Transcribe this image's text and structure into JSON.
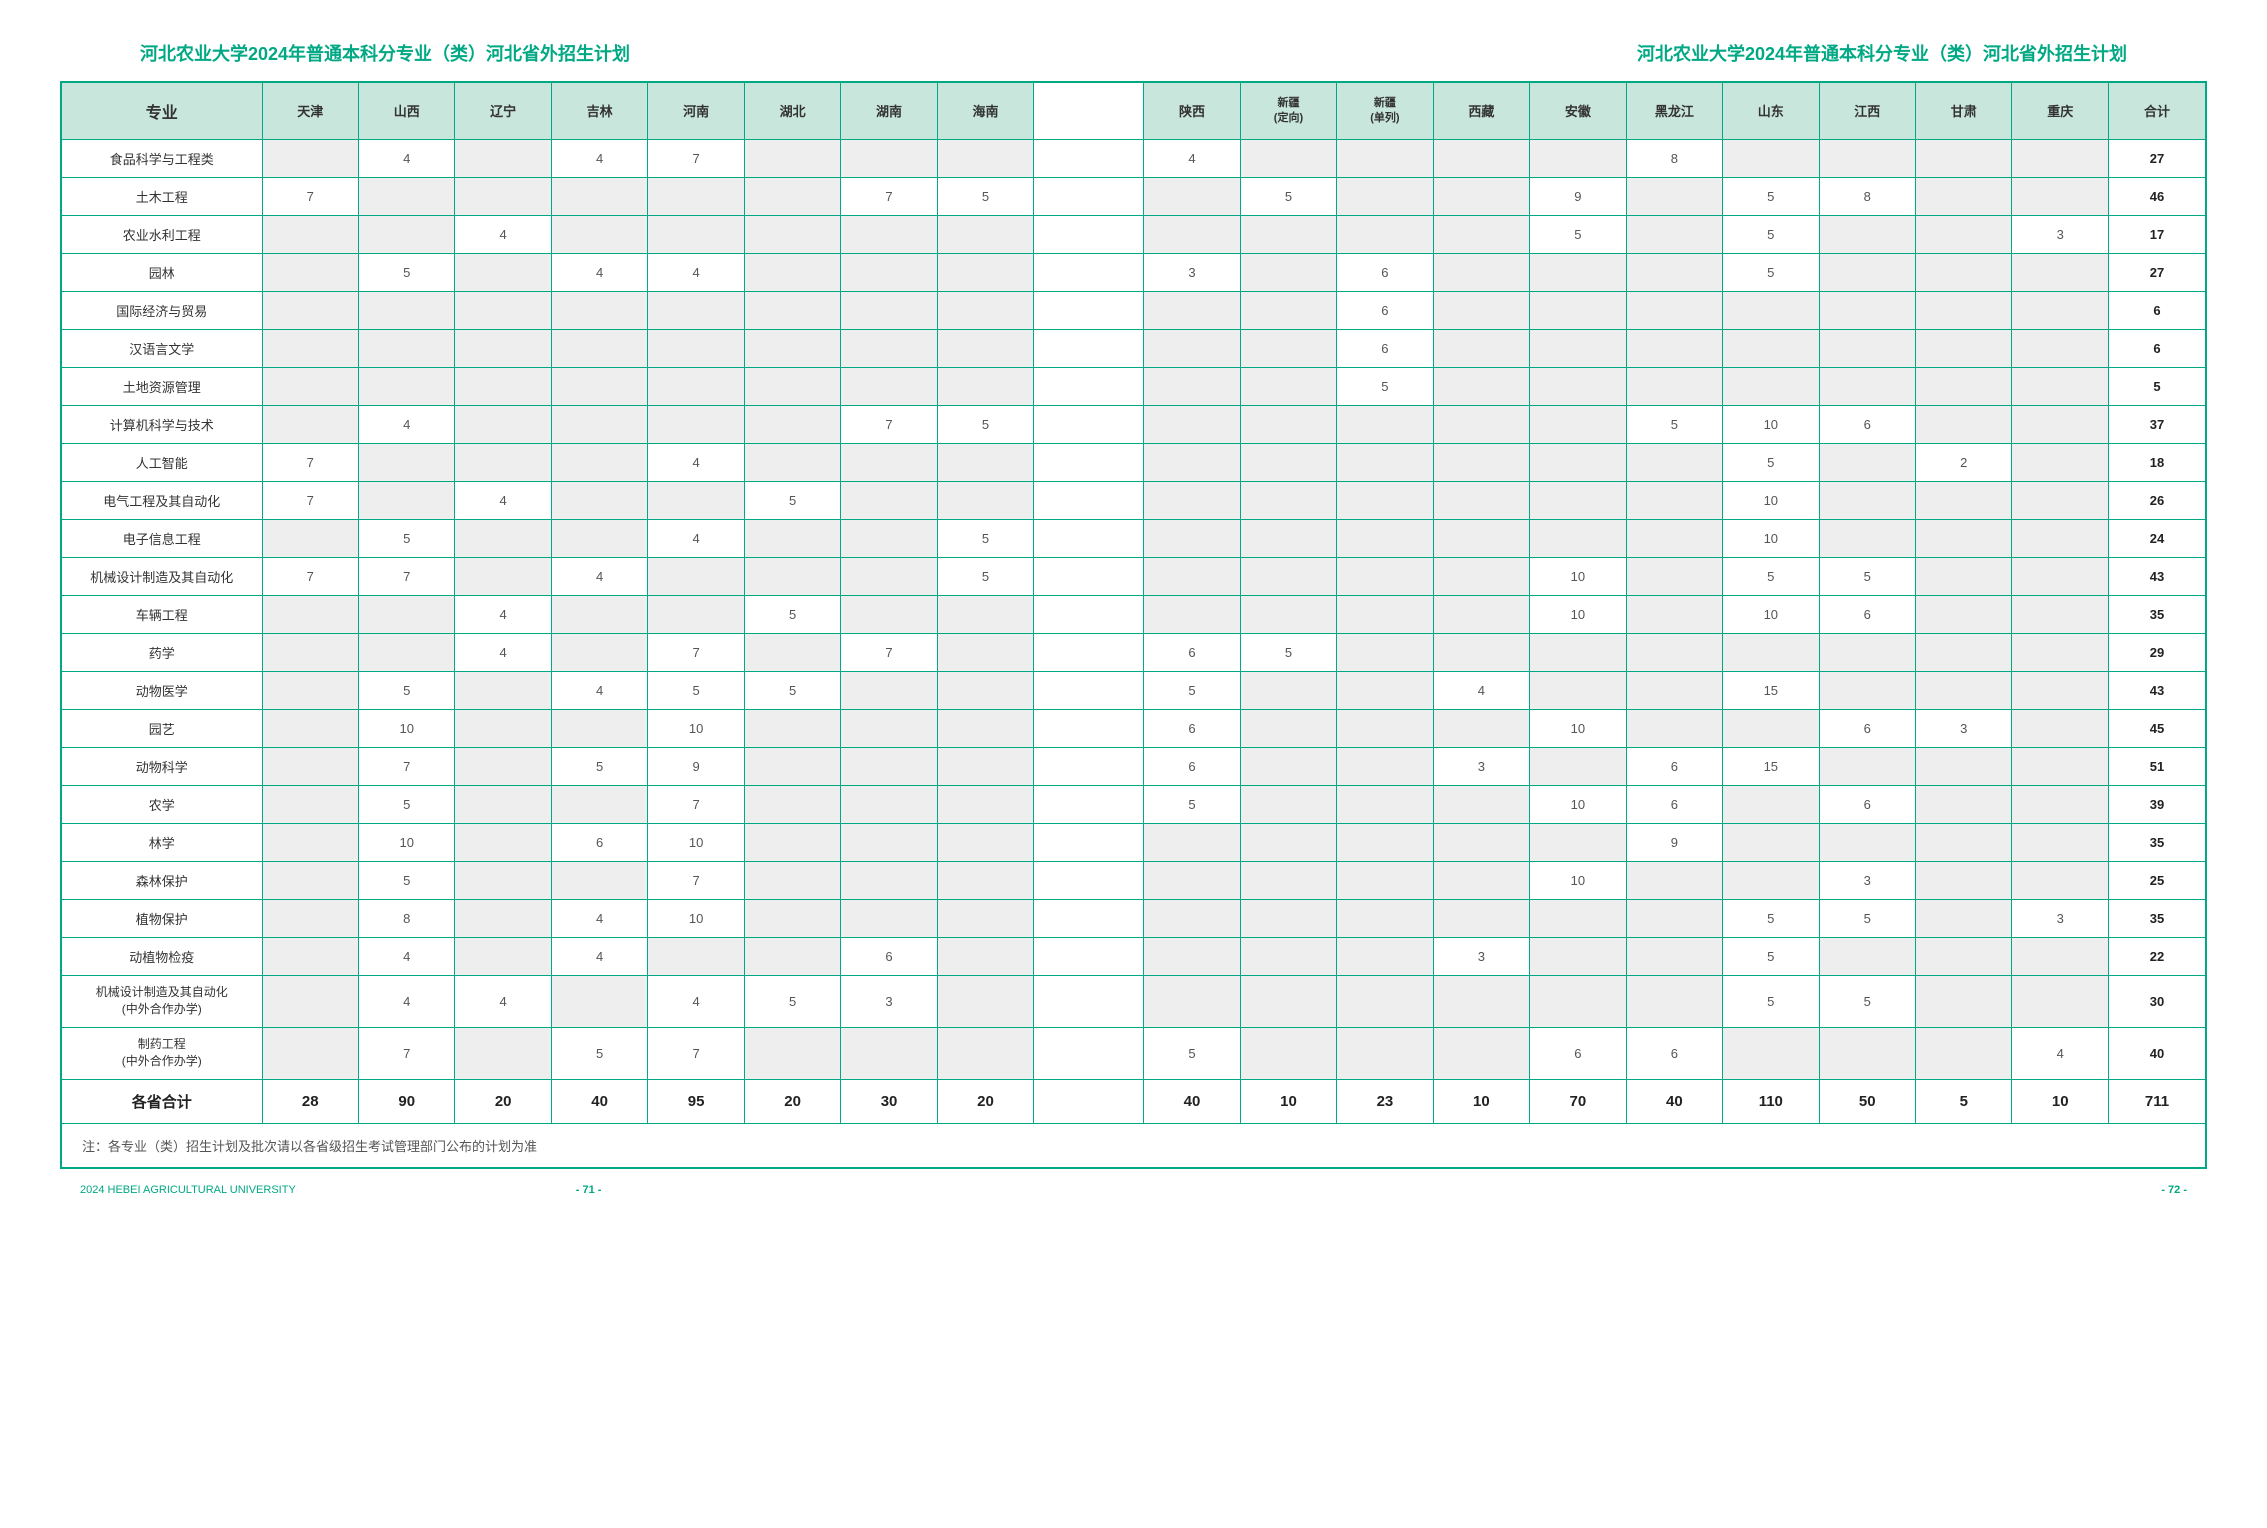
{
  "title_left": "河北农业大学2024年普通本科分专业（类）河北省外招生计划",
  "title_right": "河北农业大学2024年普通本科分专业（类）河北省外招生计划",
  "columns": [
    "专业",
    "天津",
    "山西",
    "辽宁",
    "吉林",
    "河南",
    "湖北",
    "湖南",
    "海南",
    "",
    "陕西",
    "新疆(定向)",
    "新疆(单列)",
    "西藏",
    "安徽",
    "黑龙江",
    "山东",
    "江西",
    "甘肃",
    "重庆",
    "合计"
  ],
  "rows": [
    {
      "major": "食品科学与工程类",
      "v": [
        "",
        "4",
        "",
        "4",
        "7",
        "",
        "",
        "",
        "",
        "4",
        "",
        "",
        "",
        "",
        "8",
        "",
        "",
        "",
        "",
        "27"
      ]
    },
    {
      "major": "土木工程",
      "v": [
        "7",
        "",
        "",
        "",
        "",
        "",
        "7",
        "5",
        "",
        "",
        "5",
        "",
        "",
        "9",
        "",
        "5",
        "8",
        "",
        "",
        "46"
      ]
    },
    {
      "major": "农业水利工程",
      "v": [
        "",
        "",
        "4",
        "",
        "",
        "",
        "",
        "",
        "",
        "",
        "",
        "",
        "",
        "5",
        "",
        "5",
        "",
        "",
        "3",
        "17"
      ]
    },
    {
      "major": "园林",
      "v": [
        "",
        "5",
        "",
        "4",
        "4",
        "",
        "",
        "",
        "",
        "3",
        "",
        "6",
        "",
        "",
        "",
        "5",
        "",
        "",
        "",
        "27"
      ]
    },
    {
      "major": "国际经济与贸易",
      "v": [
        "",
        "",
        "",
        "",
        "",
        "",
        "",
        "",
        "",
        "",
        "",
        "6",
        "",
        "",
        "",
        "",
        "",
        "",
        "",
        "6"
      ]
    },
    {
      "major": "汉语言文学",
      "v": [
        "",
        "",
        "",
        "",
        "",
        "",
        "",
        "",
        "",
        "",
        "",
        "6",
        "",
        "",
        "",
        "",
        "",
        "",
        "",
        "6"
      ]
    },
    {
      "major": "土地资源管理",
      "v": [
        "",
        "",
        "",
        "",
        "",
        "",
        "",
        "",
        "",
        "",
        "",
        "5",
        "",
        "",
        "",
        "",
        "",
        "",
        "",
        "5"
      ]
    },
    {
      "major": "计算机科学与技术",
      "v": [
        "",
        "4",
        "",
        "",
        "",
        "",
        "7",
        "5",
        "",
        "",
        "",
        "",
        "",
        "",
        "5",
        "10",
        "6",
        "",
        "",
        "37"
      ]
    },
    {
      "major": "人工智能",
      "v": [
        "7",
        "",
        "",
        "",
        "4",
        "",
        "",
        "",
        "",
        "",
        "",
        "",
        "",
        "",
        "",
        "5",
        "",
        "2",
        "",
        "18"
      ]
    },
    {
      "major": "电气工程及其自动化",
      "v": [
        "7",
        "",
        "4",
        "",
        "",
        "5",
        "",
        "",
        "",
        "",
        "",
        "",
        "",
        "",
        "",
        "10",
        "",
        "",
        "",
        "26"
      ]
    },
    {
      "major": "电子信息工程",
      "v": [
        "",
        "5",
        "",
        "",
        "4",
        "",
        "",
        "5",
        "",
        "",
        "",
        "",
        "",
        "",
        "",
        "10",
        "",
        "",
        "",
        "24"
      ]
    },
    {
      "major": "机械设计制造及其自动化",
      "v": [
        "7",
        "7",
        "",
        "4",
        "",
        "",
        "",
        "5",
        "",
        "",
        "",
        "",
        "",
        "10",
        "",
        "5",
        "5",
        "",
        "",
        "43"
      ]
    },
    {
      "major": "车辆工程",
      "v": [
        "",
        "",
        "4",
        "",
        "",
        "5",
        "",
        "",
        "",
        "",
        "",
        "",
        "",
        "10",
        "",
        "10",
        "6",
        "",
        "",
        "35"
      ]
    },
    {
      "major": "药学",
      "v": [
        "",
        "",
        "4",
        "",
        "7",
        "",
        "7",
        "",
        "",
        "6",
        "5",
        "",
        "",
        "",
        "",
        "",
        "",
        "",
        "",
        "29"
      ]
    },
    {
      "major": "动物医学",
      "v": [
        "",
        "5",
        "",
        "4",
        "5",
        "5",
        "",
        "",
        "",
        "5",
        "",
        "",
        "4",
        "",
        "",
        "15",
        "",
        "",
        "",
        "43"
      ]
    },
    {
      "major": "园艺",
      "v": [
        "",
        "10",
        "",
        "",
        "10",
        "",
        "",
        "",
        "",
        "6",
        "",
        "",
        "",
        "10",
        "",
        "",
        "6",
        "3",
        "",
        "45"
      ]
    },
    {
      "major": "动物科学",
      "v": [
        "",
        "7",
        "",
        "5",
        "9",
        "",
        "",
        "",
        "",
        "6",
        "",
        "",
        "3",
        "",
        "6",
        "15",
        "",
        "",
        "",
        "51"
      ]
    },
    {
      "major": "农学",
      "v": [
        "",
        "5",
        "",
        "",
        "7",
        "",
        "",
        "",
        "",
        "5",
        "",
        "",
        "",
        "10",
        "6",
        "",
        "6",
        "",
        "",
        "39"
      ]
    },
    {
      "major": "林学",
      "v": [
        "",
        "10",
        "",
        "6",
        "10",
        "",
        "",
        "",
        "",
        "",
        "",
        "",
        "",
        "",
        "9",
        "",
        "",
        "",
        "",
        "35"
      ]
    },
    {
      "major": "森林保护",
      "v": [
        "",
        "5",
        "",
        "",
        "7",
        "",
        "",
        "",
        "",
        "",
        "",
        "",
        "",
        "10",
        "",
        "",
        "3",
        "",
        "",
        "25"
      ]
    },
    {
      "major": "植物保护",
      "v": [
        "",
        "8",
        "",
        "4",
        "10",
        "",
        "",
        "",
        "",
        "",
        "",
        "",
        "",
        "",
        "",
        "5",
        "5",
        "",
        "3",
        "35"
      ]
    },
    {
      "major": "动植物检疫",
      "v": [
        "",
        "4",
        "",
        "4",
        "",
        "",
        "6",
        "",
        "",
        "",
        "",
        "",
        "3",
        "",
        "",
        "5",
        "",
        "",
        "",
        "22"
      ]
    },
    {
      "major": "机械设计制造及其自动化\n(中外合作办学)",
      "v": [
        "",
        "4",
        "4",
        "",
        "4",
        "5",
        "3",
        "",
        "",
        "",
        "",
        "",
        "",
        "",
        "",
        "5",
        "5",
        "",
        "",
        "30"
      ],
      "tall": true
    },
    {
      "major": "制药工程\n(中外合作办学)",
      "v": [
        "",
        "7",
        "",
        "5",
        "7",
        "",
        "",
        "",
        "",
        "5",
        "",
        "",
        "",
        "6",
        "6",
        "",
        "",
        "",
        "4",
        "40"
      ],
      "tall": true
    }
  ],
  "totals": {
    "label": "各省合计",
    "v": [
      "28",
      "90",
      "20",
      "40",
      "95",
      "20",
      "30",
      "20",
      "",
      "40",
      "10",
      "23",
      "10",
      "70",
      "40",
      "110",
      "50",
      "5",
      "10",
      "711"
    ]
  },
  "note": "注：各专业（类）招生计划及批次请以各省级招生考试管理部门公布的计划为准",
  "footer_left": "2024 HEBEI AGRICULTURAL UNIVERSITY",
  "page_left": "- 71 -",
  "page_right": "- 72 -",
  "colors": {
    "accent": "#00a884",
    "header_bg": "#c8e6dc",
    "empty_bg": "#eeeeee"
  }
}
